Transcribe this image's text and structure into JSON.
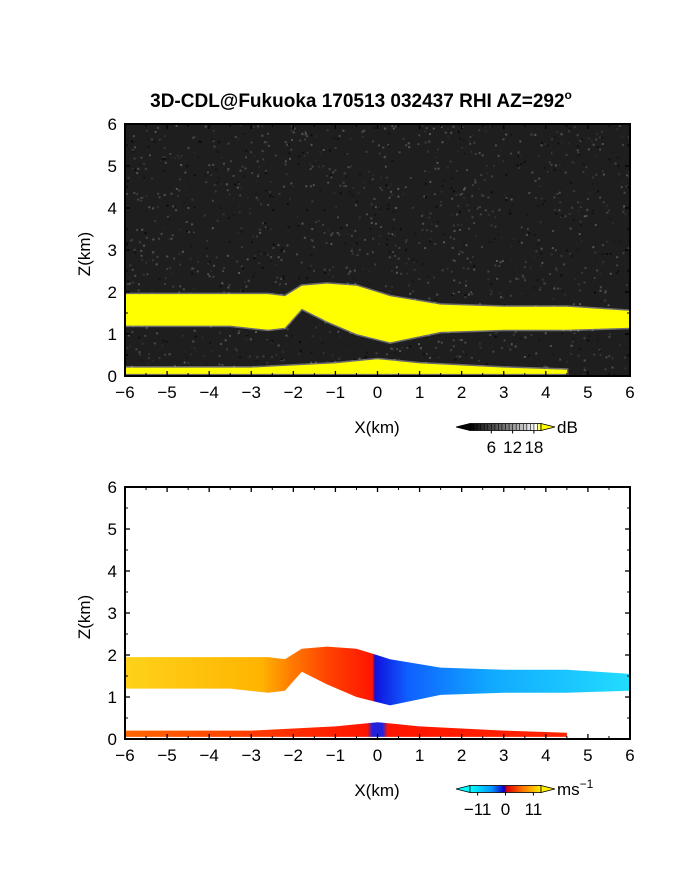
{
  "chart_data": [
    {
      "type": "heatmap",
      "title": "3D-CDL@Fukuoka 170513 032437 RHI AZ=292",
      "title_superscript": "o",
      "xlabel": "X(km)",
      "ylabel": "Z(km)",
      "xlim": [
        -6,
        6
      ],
      "ylim": [
        0,
        6
      ],
      "xticks": [
        -6,
        -5,
        -4,
        -3,
        -2,
        -1,
        0,
        1,
        2,
        3,
        4,
        5,
        6
      ],
      "yticks": [
        0,
        1,
        2,
        3,
        4,
        5,
        6
      ],
      "colorbar": {
        "unit": "dB",
        "ticks": [
          6,
          12,
          18
        ],
        "range": [
          0,
          20
        ]
      },
      "background": "noise",
      "layers": [
        {
          "x": [
            -6,
            -3.5,
            -2.6,
            -2.2,
            -1.8,
            -1.2,
            -0.5,
            0.3,
            1.5,
            3,
            4.5,
            6
          ],
          "top": [
            1.95,
            1.95,
            1.95,
            1.9,
            2.15,
            2.2,
            2.15,
            1.9,
            1.7,
            1.65,
            1.65,
            1.55
          ],
          "bottom": [
            1.2,
            1.2,
            1.1,
            1.15,
            1.6,
            1.3,
            1.0,
            0.8,
            1.05,
            1.1,
            1.1,
            1.15
          ]
        },
        {
          "x": [
            -6,
            -3,
            -1,
            0,
            1,
            3,
            4.5
          ],
          "top": [
            0.2,
            0.2,
            0.3,
            0.4,
            0.3,
            0.2,
            0.15
          ],
          "bottom": [
            0.05,
            0.05,
            0.05,
            0.05,
            0.05,
            0.05,
            0.05
          ]
        }
      ]
    },
    {
      "type": "heatmap",
      "title": "",
      "xlabel": "X(km)",
      "ylabel": "Z(km)",
      "xlim": [
        -6,
        6
      ],
      "ylim": [
        0,
        6
      ],
      "xticks": [
        -6,
        -5,
        -4,
        -3,
        -2,
        -1,
        0,
        1,
        2,
        3,
        4,
        5,
        6
      ],
      "yticks": [
        0,
        1,
        2,
        3,
        4,
        5,
        6
      ],
      "colorbar": {
        "unit": "ms",
        "unit_superscript": "−1",
        "ticks": [
          "−11",
          "0",
          "11"
        ],
        "tick_values": [
          -11,
          0,
          11
        ],
        "range": [
          -14,
          14
        ]
      },
      "background": "none",
      "layers": [
        {
          "x": [
            -6,
            -3.5,
            -2.6,
            -2.2,
            -1.8,
            -1.2,
            -0.5,
            0.3,
            1.5,
            3,
            4.5,
            6
          ],
          "top": [
            1.95,
            1.95,
            1.95,
            1.9,
            2.15,
            2.2,
            2.15,
            1.9,
            1.7,
            1.65,
            1.65,
            1.55
          ],
          "bottom": [
            1.2,
            1.2,
            1.1,
            1.15,
            1.6,
            1.3,
            1.0,
            0.8,
            1.05,
            1.1,
            1.1,
            1.15
          ]
        },
        {
          "x": [
            -6,
            -3,
            -1,
            0,
            1,
            3,
            4.5
          ],
          "top": [
            0.2,
            0.2,
            0.3,
            0.4,
            0.3,
            0.2,
            0.15
          ],
          "bottom": [
            0.05,
            0.05,
            0.05,
            0.05,
            0.05,
            0.05,
            0.05
          ]
        }
      ]
    }
  ]
}
